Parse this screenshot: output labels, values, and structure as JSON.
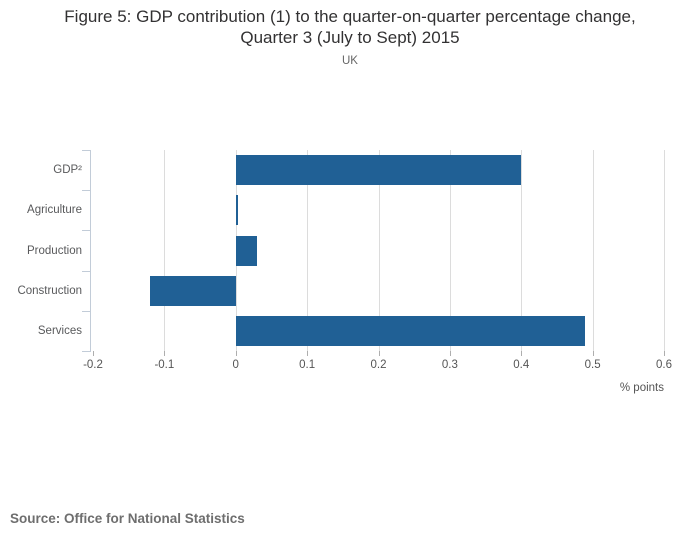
{
  "figure": {
    "title_line1": "Figure 5: GDP contribution (1) to the quarter-on-quarter percentage change,",
    "title_line2": "Quarter 3 (July to Sept) 2015",
    "subtitle": "UK",
    "source": "Source: Office for National Statistics"
  },
  "chart_data": {
    "type": "bar",
    "orientation": "horizontal",
    "title": "Figure 5: GDP contribution (1) to the quarter-on-quarter percentage change, Quarter 3 (July to Sept) 2015",
    "subtitle": "UK",
    "categories": [
      "GDP²",
      "Agriculture",
      "Production",
      "Construction",
      "Services"
    ],
    "values": [
      0.4,
      0.003,
      0.03,
      -0.12,
      0.49
    ],
    "xlabel": "% points",
    "ylabel": "",
    "xlim": [
      -0.2,
      0.6
    ],
    "xticks": [
      -0.2,
      -0.1,
      0,
      0.1,
      0.2,
      0.3,
      0.4,
      0.5,
      0.6
    ],
    "xtick_labels": [
      "-0.2",
      "-0.1",
      "0",
      "0.1",
      "0.2",
      "0.3",
      "0.4",
      "0.5",
      "0.6"
    ],
    "grid": true,
    "legend": false,
    "bar_color": "#206095",
    "source": "Source: Office for National Statistics"
  },
  "colors": {
    "bar": "#206095",
    "gridline": "#dcdcdc",
    "axis": "#c2ccd8",
    "title_text": "#323132",
    "label_text": "#58595b",
    "subtitle_text": "#666666",
    "source_text": "#6e6e6e"
  }
}
